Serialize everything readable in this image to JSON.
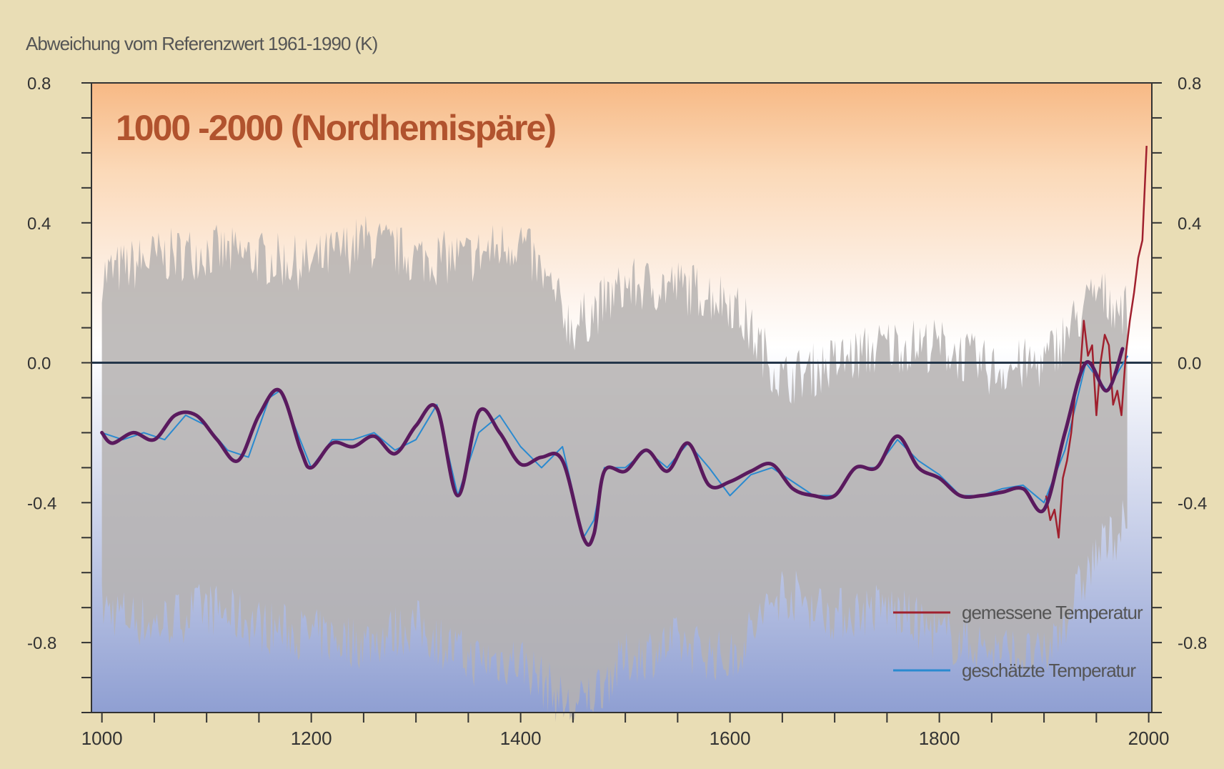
{
  "chart_data": {
    "type": "line",
    "title": "1000 -2000 (Nordhemispäre)",
    "ylabel": "Abweichung vom Referenzwert 1961-1990 (K)",
    "xlabel": "",
    "xlim": [
      990,
      2003
    ],
    "ylim": [
      -1.0,
      0.8
    ],
    "x_ticks": [
      1000,
      1200,
      1400,
      1600,
      1800,
      2000
    ],
    "x_tick_labels": [
      "1000",
      "1200",
      "1400",
      "1600",
      "1800",
      "2000"
    ],
    "y_ticks": [
      0.8,
      0.4,
      0.0,
      -0.4,
      -0.8
    ],
    "y_tick_labels": [
      "0.8",
      "0.4",
      "0.0",
      "-0.4",
      "-0.8"
    ],
    "grid": false,
    "legend_position": "bottom-right",
    "series": [
      {
        "name": "gemessene Temperatur",
        "color": "#a0202e",
        "x": [
          1902,
          1906,
          1910,
          1914,
          1918,
          1922,
          1926,
          1930,
          1934,
          1938,
          1942,
          1946,
          1950,
          1954,
          1958,
          1962,
          1966,
          1970,
          1974,
          1978,
          1982,
          1986,
          1990,
          1994,
          1998
        ],
        "y": [
          -0.38,
          -0.45,
          -0.42,
          -0.5,
          -0.33,
          -0.28,
          -0.2,
          -0.08,
          -0.05,
          0.12,
          0.02,
          0.05,
          -0.15,
          0.0,
          0.08,
          0.05,
          -0.12,
          -0.08,
          -0.15,
          0.02,
          0.12,
          0.2,
          0.3,
          0.35,
          0.62
        ]
      },
      {
        "name": "geschätzte Temperatur",
        "color": "#2a8ad0",
        "x": [
          1000,
          1020,
          1040,
          1060,
          1080,
          1100,
          1120,
          1140,
          1160,
          1170,
          1180,
          1200,
          1220,
          1240,
          1260,
          1280,
          1300,
          1320,
          1340,
          1360,
          1380,
          1400,
          1420,
          1440,
          1460,
          1470,
          1480,
          1500,
          1520,
          1540,
          1560,
          1580,
          1600,
          1620,
          1640,
          1660,
          1680,
          1700,
          1720,
          1740,
          1760,
          1780,
          1800,
          1820,
          1840,
          1860,
          1880,
          1900,
          1920,
          1940,
          1960,
          1980
        ],
        "y": [
          -0.2,
          -0.22,
          -0.2,
          -0.22,
          -0.15,
          -0.18,
          -0.25,
          -0.27,
          -0.1,
          -0.08,
          -0.15,
          -0.3,
          -0.22,
          -0.22,
          -0.2,
          -0.25,
          -0.22,
          -0.12,
          -0.38,
          -0.2,
          -0.15,
          -0.24,
          -0.3,
          -0.24,
          -0.5,
          -0.45,
          -0.3,
          -0.3,
          -0.25,
          -0.3,
          -0.23,
          -0.3,
          -0.38,
          -0.32,
          -0.3,
          -0.34,
          -0.38,
          -0.38,
          -0.3,
          -0.3,
          -0.22,
          -0.28,
          -0.32,
          -0.38,
          -0.38,
          -0.36,
          -0.35,
          -0.4,
          -0.25,
          0.0,
          -0.08,
          0.02
        ]
      }
    ],
    "trend_line": {
      "color": "#5a1a5e",
      "x": [
        1000,
        1010,
        1030,
        1050,
        1070,
        1090,
        1110,
        1130,
        1150,
        1170,
        1190,
        1200,
        1220,
        1240,
        1260,
        1280,
        1300,
        1320,
        1340,
        1360,
        1380,
        1400,
        1420,
        1440,
        1460,
        1470,
        1480,
        1500,
        1520,
        1540,
        1560,
        1580,
        1600,
        1620,
        1640,
        1660,
        1680,
        1700,
        1720,
        1740,
        1760,
        1780,
        1800,
        1820,
        1840,
        1860,
        1880,
        1900,
        1920,
        1940,
        1960,
        1975
      ],
      "y": [
        -0.2,
        -0.23,
        -0.2,
        -0.22,
        -0.15,
        -0.15,
        -0.22,
        -0.28,
        -0.15,
        -0.08,
        -0.25,
        -0.3,
        -0.23,
        -0.24,
        -0.21,
        -0.26,
        -0.18,
        -0.13,
        -0.38,
        -0.14,
        -0.2,
        -0.29,
        -0.27,
        -0.28,
        -0.5,
        -0.49,
        -0.31,
        -0.31,
        -0.25,
        -0.31,
        -0.23,
        -0.35,
        -0.34,
        -0.31,
        -0.29,
        -0.36,
        -0.38,
        -0.38,
        -0.3,
        -0.3,
        -0.21,
        -0.3,
        -0.33,
        -0.38,
        -0.38,
        -0.37,
        -0.36,
        -0.42,
        -0.2,
        0.0,
        -0.08,
        0.04
      ]
    },
    "uncertainty_band": {
      "color": "#b5b2b0",
      "x": [
        1000,
        1050,
        1100,
        1150,
        1200,
        1250,
        1300,
        1350,
        1400,
        1450,
        1500,
        1550,
        1600,
        1650,
        1700,
        1750,
        1800,
        1850,
        1900,
        1950,
        1980
      ],
      "upper": [
        0.25,
        0.3,
        0.32,
        0.3,
        0.28,
        0.35,
        0.3,
        0.3,
        0.35,
        0.1,
        0.22,
        0.22,
        0.18,
        -0.05,
        0.0,
        0.05,
        0.05,
        -0.02,
        0.0,
        0.2,
        0.15
      ],
      "lower": [
        -0.7,
        -0.75,
        -0.7,
        -0.75,
        -0.78,
        -0.8,
        -0.75,
        -0.85,
        -0.85,
        -1.0,
        -0.85,
        -0.8,
        -0.85,
        -0.65,
        -0.72,
        -0.7,
        -0.78,
        -0.82,
        -0.85,
        -0.55,
        -0.45
      ]
    }
  }
}
